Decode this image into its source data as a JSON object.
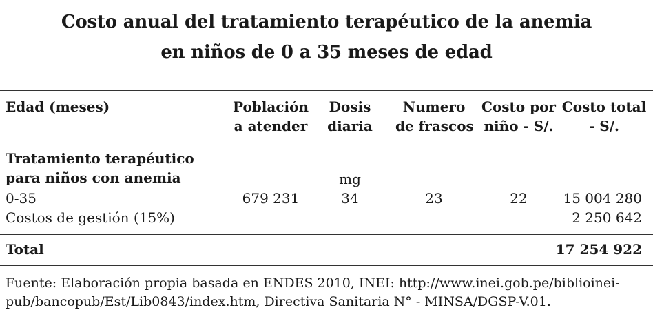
{
  "title": {
    "line1": "Costo anual del tratamiento terapéutico de la anemia",
    "line2": "en niños de 0 a 35 meses de edad"
  },
  "table": {
    "headers": {
      "edad": "Edad (meses)",
      "poblacion_1": "Población",
      "poblacion_2": "a atender",
      "dosis_1": "Dosis",
      "dosis_2": "diaria",
      "frascos_1": "Numero",
      "frascos_2": "de frascos",
      "costo_nino_1": "Costo por",
      "costo_nino_2": "niño - S/.",
      "costo_total_1": "Costo total",
      "costo_total_2": "- S/."
    },
    "section": {
      "line1": "Tratamiento terapéutico",
      "line2": "para niños con anemia",
      "unit": "mg"
    },
    "row": {
      "edad": "0-35",
      "poblacion": "679 231",
      "dosis": "34",
      "frascos": "23",
      "costo_nino": "22",
      "costo_total": "15 004 280"
    },
    "gestion": {
      "label": "Costos de gestión (15%)",
      "costo_total": "2 250 642"
    },
    "total": {
      "label": "Total",
      "costo_total": "17 254 922"
    }
  },
  "footer": {
    "line1": "Fuente: Elaboración propia basada en ENDES 2010, INEI: http://www.inei.gob.pe/biblioinei-",
    "line2": "pub/bancopub/Est/Lib0843/index.htm, Directiva Sanitaria N° - MINSA/DGSP-V.01."
  }
}
